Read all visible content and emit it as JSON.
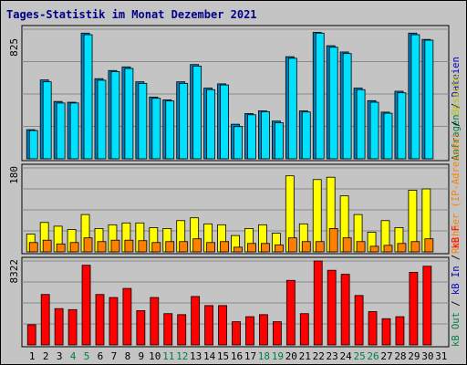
{
  "title": "Tages-Statistik im Monat Dezember 2021",
  "colors": {
    "background": "#c4c4c4",
    "border": "#000000",
    "grid": "#8a8a8a",
    "title": "#000088",
    "dateiAnfragen": "#00e0ff",
    "anfragen": "#0080c0",
    "besuche": "#ffff00",
    "rechner": "#ff8000",
    "kbF": "#ff0000",
    "weekend": "#008040",
    "weekday": "#000000"
  },
  "legend": {
    "top": [
      {
        "text": "Anfragen",
        "color": "#008040"
      },
      {
        "text": " / ",
        "color": "#000000"
      },
      {
        "text": "Dateien",
        "color": "#0000c0"
      }
    ],
    "middle": [
      {
        "text": "Rechner (IP-Adressen)",
        "color": "#ff8000"
      },
      {
        "text": " / ",
        "color": "#000000"
      },
      {
        "text": "Besuche",
        "color": "#c0c000"
      }
    ],
    "bottom": [
      {
        "text": "kB Out",
        "color": "#008040"
      },
      {
        "text": " / ",
        "color": "#000000"
      },
      {
        "text": "kB In",
        "color": "#0000c0"
      },
      {
        "text": " / ",
        "color": "#000000"
      },
      {
        "text": "kB F",
        "color": "#ff0000"
      }
    ]
  },
  "chart_data": {
    "type": "bar",
    "title": "Tages-Statistik im Monat Dezember 2021",
    "categories": [
      "1",
      "2",
      "3",
      "4",
      "5",
      "6",
      "7",
      "8",
      "9",
      "10",
      "11",
      "12",
      "13",
      "14",
      "15",
      "16",
      "17",
      "18",
      "19",
      "20",
      "21",
      "22",
      "23",
      "24",
      "25",
      "26",
      "27",
      "28",
      "29",
      "30",
      "31"
    ],
    "weekend_days": [
      "4",
      "5",
      "11",
      "12",
      "18",
      "19",
      "25",
      "26"
    ],
    "panels": [
      {
        "name": "top",
        "ymax_label": "825",
        "ymax": 825,
        "series": [
          {
            "name": "Anfragen",
            "color": "#0080c0",
            "values": [
              185,
              502,
              365,
              360,
              800,
              510,
              562,
              585,
              490,
              393,
              375,
              490,
              600,
              450,
              477,
              220,
              288,
              305,
              240,
              650,
              305,
              805,
              720,
              680,
              450,
              370,
              297,
              430,
              800,
              760
            ]
          },
          {
            "name": "Dateien",
            "color": "#00e0ff",
            "values": [
              180,
              490,
              355,
              355,
              790,
              500,
              555,
              575,
              480,
              385,
              368,
              480,
              590,
              440,
              470,
              205,
              280,
              300,
              230,
              640,
              298,
              800,
              710,
              670,
              440,
              360,
              290,
              420,
              790,
              755
            ]
          }
        ]
      },
      {
        "name": "middle",
        "ymax_label": "180",
        "ymax": 180,
        "series": [
          {
            "name": "Besuche",
            "color": "#ffff00",
            "values": [
              38,
              63,
              55,
              48,
              80,
              50,
              58,
              62,
              62,
              52,
              50,
              67,
              73,
              60,
              58,
              35,
              50,
              58,
              40,
              163,
              60,
              155,
              160,
              120,
              80,
              42,
              67,
              52,
              132,
              135
            ]
          },
          {
            "name": "Rechner (IP-Adressen)",
            "color": "#ff8000",
            "values": [
              20,
              25,
              17,
              20,
              30,
              22,
              25,
              25,
              24,
              20,
              22,
              22,
              28,
              20,
              22,
              10,
              18,
              18,
              15,
              30,
              22,
              22,
              50,
              30,
              22,
              12,
              14,
              18,
              22,
              28
            ]
          }
        ]
      },
      {
        "name": "bottom",
        "ymax_label": "8322",
        "ymax": 8322,
        "series": [
          {
            "name": "kB F",
            "color": "#ff0000",
            "values": [
              2000,
              5000,
              3600,
              3500,
              7900,
              5000,
              4700,
              5600,
              3400,
              4700,
              3100,
              3000,
              4800,
              3900,
              3900,
              2300,
              2800,
              3000,
              2300,
              6400,
              3100,
              8322,
              7400,
              7000,
              4900,
              3300,
              2600,
              2800,
              7200,
              7800
            ]
          }
        ]
      }
    ],
    "ylim": [
      0,
      825
    ],
    "grid": true
  }
}
